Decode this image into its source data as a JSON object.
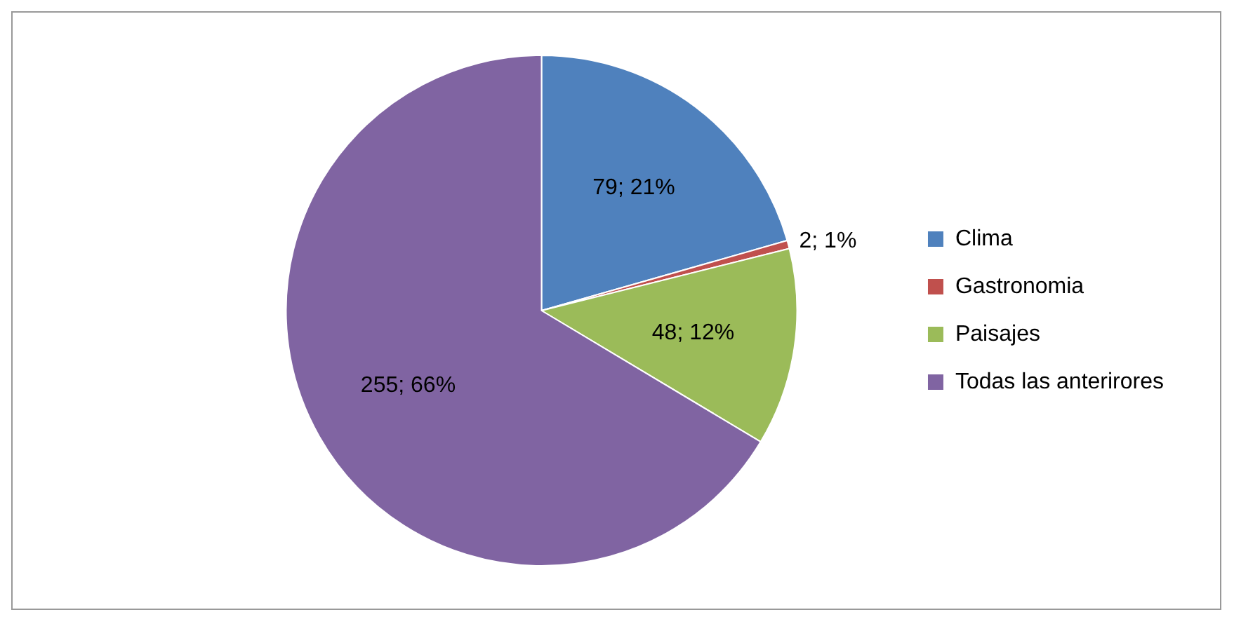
{
  "chart_data": {
    "type": "pie",
    "categories": [
      "Clima",
      "Gastronomia",
      "Paisajes",
      "Todas las anterirores"
    ],
    "values": [
      79,
      2,
      48,
      255
    ],
    "colors": [
      "#4f81bd",
      "#c0504d",
      "#9bbb59",
      "#8064a2"
    ],
    "value_labels": [
      "79; 21%",
      "2; 1%",
      "48; 12%",
      "255; 66%"
    ],
    "legend": "right"
  }
}
